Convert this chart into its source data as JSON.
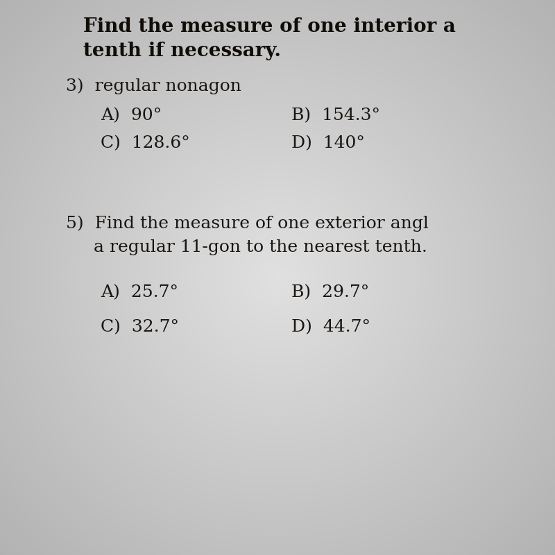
{
  "background_color": "#c8c8c8",
  "center_bg": "#e8e8e8",
  "title_line1": "Find the measure of one interior a",
  "title_line2": "tenth if necessary.",
  "q3_label": "3)  regular nonagon",
  "q3_A": "A)  90°",
  "q3_B": "B)  154.3°",
  "q3_C": "C)  128.6°",
  "q3_D": "D)  140°",
  "q5_line1": "5)  Find the measure of one exterior angl",
  "q5_line2": "     a regular 11-gon to the nearest tenth.",
  "q5_A": "A)  25.7°",
  "q5_B": "B)  29.7°",
  "q5_C": "C)  32.7°",
  "q5_D": "D)  44.7°",
  "text_color": "#1a1510",
  "bold_color": "#100c08",
  "title_fontsize": 20,
  "q3_label_fontsize": 18,
  "answer_fontsize": 18
}
